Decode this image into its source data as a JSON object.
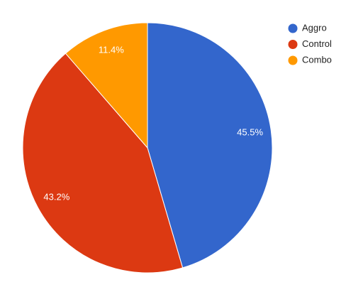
{
  "chart_data": {
    "type": "pie",
    "categories": [
      "Aggro",
      "Control",
      "Combo"
    ],
    "values": [
      45.5,
      43.2,
      11.4
    ],
    "value_labels": [
      "45.5%",
      "43.2%",
      "11.4%"
    ],
    "colors": [
      "#3366cc",
      "#dc3912",
      "#ff9900"
    ],
    "legend": "right"
  }
}
